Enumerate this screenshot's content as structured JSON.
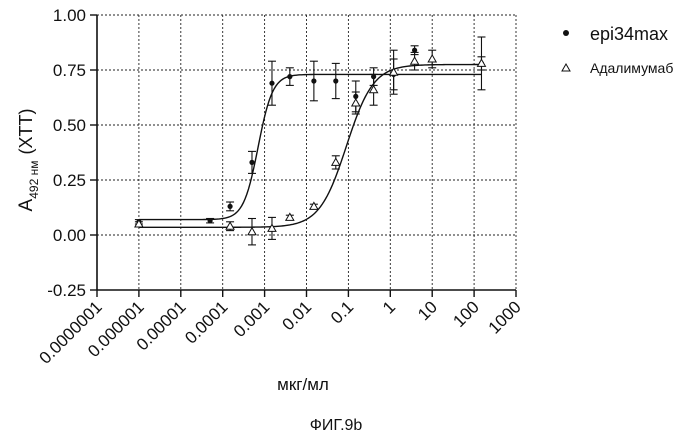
{
  "chart_data": {
    "type": "scatter",
    "title": "",
    "xscale": "log",
    "xlabel": "мкг/мл",
    "ylabel": {
      "main": "A",
      "sub": "492 нм",
      "suffix": "(XTT)"
    },
    "xlim": [
      1e-07,
      1000
    ],
    "ylim": [
      -0.25,
      1.0
    ],
    "x_ticks": [
      "0.0000001",
      "0.000001",
      "0.00001",
      "0.0001",
      "0.001",
      "0.01",
      "0.1",
      "1",
      "10",
      "100",
      "1000"
    ],
    "y_ticks": [
      "-0.25",
      "0.00",
      "0.25",
      "0.50",
      "0.75",
      "1.00"
    ],
    "grid": true,
    "legend_position": "top-right",
    "series": [
      {
        "name": "epi34max",
        "marker": "filled-circle",
        "x": [
          1e-06,
          5e-05,
          0.00015,
          0.0005,
          0.0015,
          0.004,
          0.015,
          0.05,
          0.15,
          0.4,
          1.2,
          3.8,
          150
        ],
        "y": [
          0.06,
          0.065,
          0.13,
          0.33,
          0.69,
          0.72,
          0.7,
          0.7,
          0.63,
          0.72,
          0.73,
          0.84,
          0.78
        ],
        "err": [
          0.01,
          0.01,
          0.02,
          0.05,
          0.1,
          0.04,
          0.09,
          0.08,
          0.07,
          0.04,
          0.07,
          0.02,
          0.03
        ],
        "fit": {
          "bottom": 0.07,
          "top": 0.73,
          "ec50": 0.0007,
          "hill": 2.5
        }
      },
      {
        "name": "Адалимумаб",
        "marker": "open-triangle",
        "x": [
          1e-06,
          0.00015,
          0.0005,
          0.0015,
          0.004,
          0.015,
          0.05,
          0.15,
          0.4,
          1.2,
          3.8,
          10,
          150
        ],
        "y": [
          0.05,
          0.04,
          0.015,
          0.03,
          0.08,
          0.13,
          0.33,
          0.6,
          0.66,
          0.74,
          0.79,
          0.8,
          0.78
        ],
        "err": [
          0.01,
          0.02,
          0.06,
          0.05,
          0.01,
          0.01,
          0.03,
          0.05,
          0.07,
          0.1,
          0.04,
          0.04,
          0.12
        ],
        "fit": {
          "bottom": 0.035,
          "top": 0.775,
          "ec50": 0.09,
          "hill": 1.35
        }
      }
    ],
    "caption": "ФИГ.9b"
  }
}
